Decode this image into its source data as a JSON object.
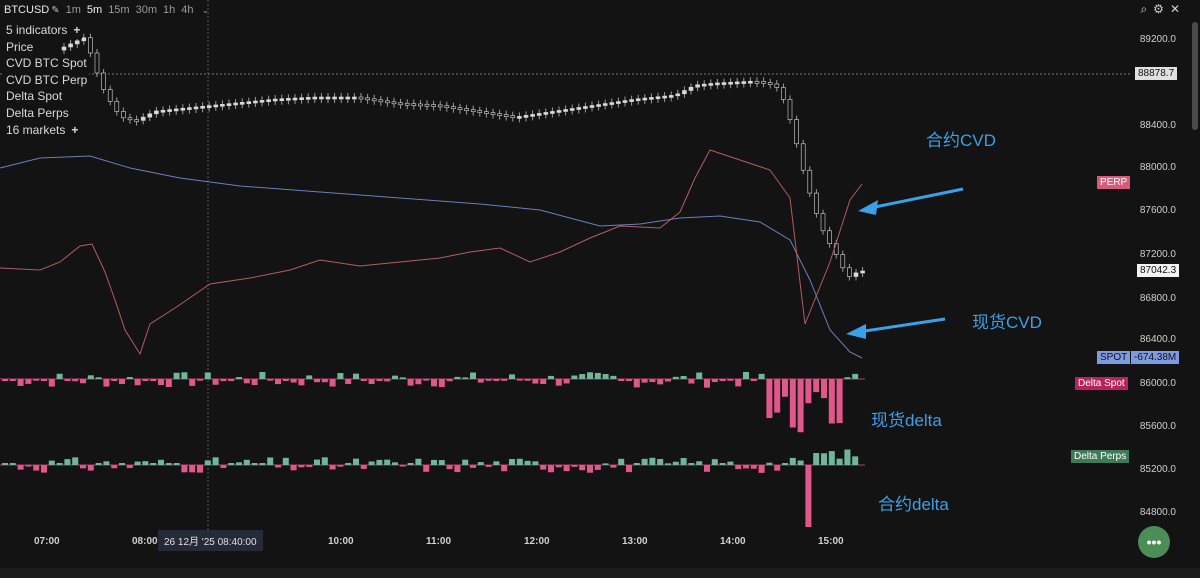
{
  "toolbar": {
    "symbol": "BTCUSD",
    "timeframes": [
      "1m",
      "5m",
      "15m",
      "30m",
      "1h",
      "4h"
    ],
    "active_timeframe": "5m"
  },
  "indicators": {
    "count_label": "5 indicators",
    "items": [
      "Price",
      "CVD BTC Spot",
      "CVD BTC Perp",
      "Delta Spot",
      "Delta Perps"
    ],
    "markets_label": "16 markets"
  },
  "y_axis": {
    "ticks": [
      "89200.0",
      "88400.0",
      "88000.0",
      "87600.0",
      "87200.0",
      "86800.0",
      "86400.0",
      "86000.0",
      "85600.0",
      "85200.0",
      "84800.0"
    ],
    "price_marker": "88878.7",
    "last_price": "87042.3"
  },
  "tags": {
    "perp": "PERP",
    "spot": "SPOT",
    "spot_value": "-674.38M",
    "delta_spot": "Delta Spot",
    "delta_perps": "Delta Perps"
  },
  "x_axis": {
    "labels": [
      "07:00",
      "08:00",
      "10:00",
      "11:00",
      "12:00",
      "13:00",
      "14:00",
      "15:00"
    ],
    "cursor_time": "26 12月 '25   08:40:00"
  },
  "annotations": {
    "perp_cvd": "合约CVD",
    "spot_cvd": "现货CVD",
    "spot_delta": "现货delta",
    "perp_delta": "合约delta"
  },
  "colors": {
    "background": "#131313",
    "up_candle": "#d9d9d9",
    "spot_cvd_line": "#6a7fc0",
    "perp_cvd_line": "#b45a6a",
    "delta_positive": "#6fb79b",
    "delta_negative": "#e0578a",
    "annotation": "#3aa0e8"
  },
  "fab_icon": "more-dots-icon"
}
